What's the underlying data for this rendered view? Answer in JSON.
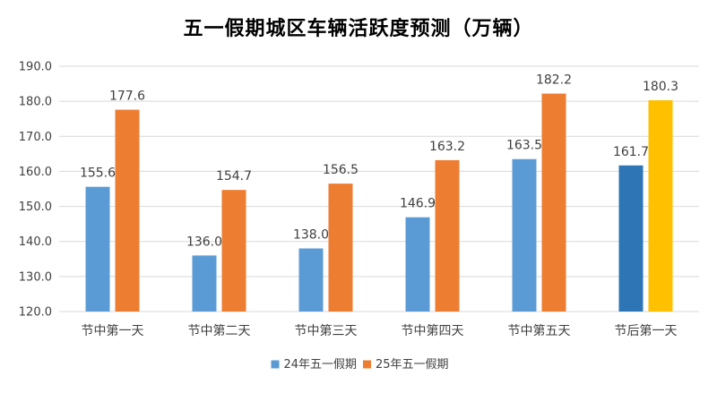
{
  "chart_data": {
    "type": "bar",
    "title": "五一假期城区车辆活跃度预测（万辆）",
    "xlabel": "",
    "ylabel": "",
    "ylim": [
      120,
      190
    ],
    "yticks": [
      120,
      130,
      140,
      150,
      160,
      170,
      180,
      190
    ],
    "ytick_labels": [
      "120.0",
      "130.0",
      "140.0",
      "150.0",
      "160.0",
      "170.0",
      "180.0",
      "190.0"
    ],
    "grid": true,
    "categories": [
      "节中第一天",
      "节中第二天",
      "节中第三天",
      "节中第四天",
      "节中第五天",
      "节后第一天"
    ],
    "series": [
      {
        "name": "24年五一假期",
        "color": "#5B9BD5",
        "values": [
          155.6,
          136.0,
          138.0,
          146.9,
          163.5,
          161.7
        ],
        "labels": [
          "155.6",
          "136.0",
          "138.0",
          "146.9",
          "163.5",
          "161.7"
        ],
        "point_colors": [
          "#5B9BD5",
          "#5B9BD5",
          "#5B9BD5",
          "#5B9BD5",
          "#5B9BD5",
          "#2E75B6"
        ]
      },
      {
        "name": "25年五一假期",
        "color": "#ED7D31",
        "values": [
          177.6,
          154.7,
          156.5,
          163.2,
          182.2,
          180.3
        ],
        "labels": [
          "177.6",
          "154.7",
          "156.5",
          "163.2",
          "182.2",
          "180.3"
        ],
        "point_colors": [
          "#ED7D31",
          "#ED7D31",
          "#ED7D31",
          "#ED7D31",
          "#ED7D31",
          "#FFC000"
        ]
      }
    ],
    "legend_position": "bottom"
  }
}
